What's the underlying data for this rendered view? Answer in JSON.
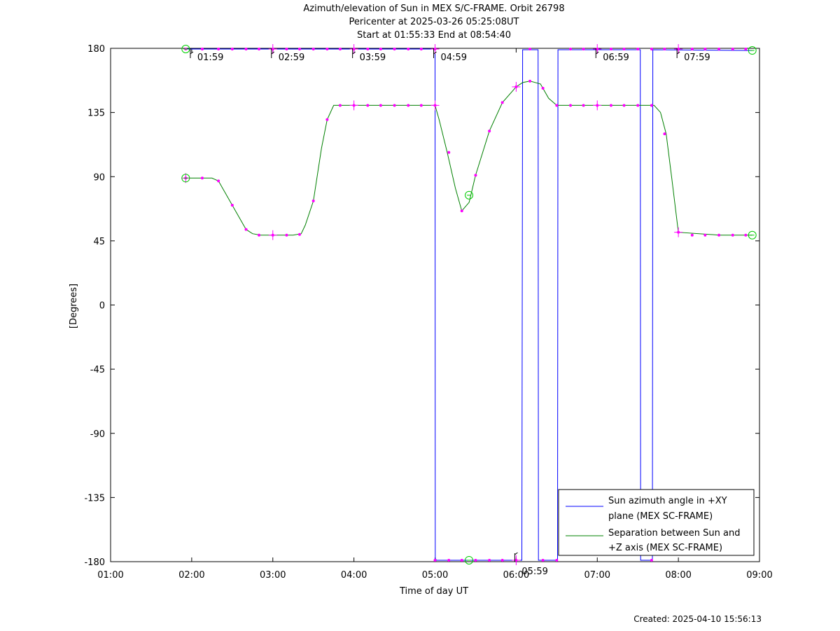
{
  "title": {
    "line1": "Azimuth/elevation of Sun in MEX S/C-FRAME.  Orbit 26798",
    "line2": "Pericenter at 2025-03-26 05:25:08UT",
    "line3": "Start at 01:55:33 End at 08:54:40"
  },
  "footer": {
    "created": "Created: 2025-04-10 15:56:13"
  },
  "chart_data": {
    "type": "line",
    "xlabel": "Time of day UT",
    "ylabel": "[Degrees]",
    "xlim": [
      1.0,
      9.0
    ],
    "ylim": [
      -180,
      180
    ],
    "x_ticks": [
      {
        "v": 1,
        "label": "01:00"
      },
      {
        "v": 2,
        "label": "02:00"
      },
      {
        "v": 3,
        "label": "03:00"
      },
      {
        "v": 4,
        "label": "04:00"
      },
      {
        "v": 5,
        "label": "05:00"
      },
      {
        "v": 6,
        "label": "06:00"
      },
      {
        "v": 7,
        "label": "07:00"
      },
      {
        "v": 8,
        "label": "08:00"
      },
      {
        "v": 9,
        "label": "09:00"
      }
    ],
    "y_ticks": [
      {
        "v": 180,
        "label": "180"
      },
      {
        "v": 135,
        "label": "135"
      },
      {
        "v": 90,
        "label": "90"
      },
      {
        "v": 45,
        "label": "45"
      },
      {
        "v": 0,
        "label": "0"
      },
      {
        "v": -45,
        "label": "-45"
      },
      {
        "v": -90,
        "label": "-90"
      },
      {
        "v": -135,
        "label": "-135"
      },
      {
        "v": -180,
        "label": "-180"
      }
    ],
    "grid": false,
    "legend_position": "bottom-right",
    "series": [
      {
        "name": "Sun azimuth angle in +XY plane (MEX SC-FRAME)",
        "color": "#0000ff",
        "x": [
          1.926,
          5.0,
          5.003,
          5.02,
          6.07,
          6.08,
          6.27,
          6.275,
          6.51,
          6.515,
          7.53,
          7.535,
          7.68,
          7.685,
          8.911
        ],
        "y": [
          179.5,
          179.5,
          -178,
          -179,
          -179,
          179,
          179,
          -179,
          -179,
          179,
          179,
          -179,
          -179,
          179,
          178.5
        ]
      },
      {
        "name": "Separation between Sun and +Z axis (MEX SC-FRAME)",
        "color": "#008000",
        "x": [
          1.926,
          2.0,
          2.25,
          2.33,
          2.5,
          2.67,
          2.75,
          2.85,
          3.0,
          3.25,
          3.35,
          3.4,
          3.5,
          3.6,
          3.67,
          3.75,
          4.0,
          4.5,
          5.0,
          5.05,
          5.15,
          5.25,
          5.33,
          5.42,
          5.5,
          5.67,
          5.83,
          6.0,
          6.08,
          6.17,
          6.3,
          6.4,
          6.5,
          7.0,
          7.5,
          7.7,
          7.78,
          7.85,
          7.92,
          8.0,
          8.5,
          8.911
        ],
        "y": [
          89,
          89,
          89,
          87,
          70,
          53,
          50,
          49,
          49,
          49,
          50,
          56,
          73,
          110,
          130,
          140,
          140,
          140,
          140,
          130,
          107,
          82,
          66,
          72,
          91,
          122,
          142,
          153,
          156,
          157,
          155,
          145,
          140,
          140,
          140,
          140,
          135,
          120,
          88,
          51,
          49,
          49
        ]
      }
    ],
    "markers": {
      "color": "#ff00ff",
      "points": [
        [
          1.926,
          89
        ],
        [
          2.13,
          89
        ],
        [
          2.33,
          87
        ],
        [
          2.5,
          70
        ],
        [
          2.67,
          53
        ],
        [
          2.83,
          49
        ],
        [
          3.0,
          49
        ],
        [
          3.17,
          49
        ],
        [
          3.33,
          49.5
        ],
        [
          3.5,
          73
        ],
        [
          3.67,
          130
        ],
        [
          3.83,
          140
        ],
        [
          4.0,
          140
        ],
        [
          4.17,
          140
        ],
        [
          4.33,
          140
        ],
        [
          4.5,
          140
        ],
        [
          4.67,
          140
        ],
        [
          4.83,
          140
        ],
        [
          5.0,
          140
        ],
        [
          5.17,
          107
        ],
        [
          5.33,
          66
        ],
        [
          5.5,
          91
        ],
        [
          5.67,
          122
        ],
        [
          5.83,
          142
        ],
        [
          6.0,
          153
        ],
        [
          6.17,
          157
        ],
        [
          6.33,
          152
        ],
        [
          6.5,
          140
        ],
        [
          6.67,
          140
        ],
        [
          6.83,
          140
        ],
        [
          7.0,
          140
        ],
        [
          7.17,
          140
        ],
        [
          7.33,
          140
        ],
        [
          7.5,
          140
        ],
        [
          7.67,
          140
        ],
        [
          7.83,
          120
        ],
        [
          8.0,
          51
        ],
        [
          8.17,
          49
        ],
        [
          8.33,
          49
        ],
        [
          8.5,
          49
        ],
        [
          8.67,
          49
        ],
        [
          8.83,
          49
        ],
        [
          1.926,
          179.5
        ],
        [
          2.13,
          179.5
        ],
        [
          2.33,
          179.5
        ],
        [
          2.5,
          179.5
        ],
        [
          2.67,
          179.5
        ],
        [
          2.83,
          179.5
        ],
        [
          3.0,
          179.5
        ],
        [
          3.17,
          179.5
        ],
        [
          3.33,
          179.5
        ],
        [
          3.5,
          179.5
        ],
        [
          3.67,
          179.5
        ],
        [
          3.83,
          179.5
        ],
        [
          4.0,
          179.5
        ],
        [
          4.17,
          179.5
        ],
        [
          4.33,
          179.5
        ],
        [
          4.5,
          179.5
        ],
        [
          4.67,
          179.5
        ],
        [
          4.83,
          179.5
        ],
        [
          5.0,
          179.5
        ],
        [
          6.17,
          179.5
        ],
        [
          6.67,
          179.5
        ],
        [
          6.83,
          179.5
        ],
        [
          7.0,
          179.5
        ],
        [
          7.17,
          179.5
        ],
        [
          7.33,
          179.5
        ],
        [
          7.5,
          179.5
        ],
        [
          7.67,
          179.5
        ],
        [
          7.83,
          179.5
        ],
        [
          8.0,
          179.5
        ],
        [
          8.17,
          179.5
        ],
        [
          8.33,
          179.5
        ],
        [
          8.5,
          179.5
        ],
        [
          8.67,
          179.5
        ],
        [
          8.83,
          179.5
        ],
        [
          5.0,
          -179
        ],
        [
          5.17,
          -179
        ],
        [
          5.33,
          -179
        ],
        [
          5.5,
          -179
        ],
        [
          5.67,
          -179
        ],
        [
          5.83,
          -179
        ],
        [
          6.0,
          -179
        ],
        [
          6.33,
          -179
        ],
        [
          6.5,
          -179
        ],
        [
          7.67,
          -179
        ]
      ]
    },
    "start_end_circles": [
      [
        1.926,
        89
      ],
      [
        1.926,
        179.5
      ],
      [
        8.911,
        49
      ],
      [
        8.911,
        178.5
      ],
      [
        5.419,
        77
      ],
      [
        5.419,
        -179
      ]
    ],
    "hour_markers": [
      {
        "x": 1.983,
        "y": 180,
        "label": "01:59"
      },
      {
        "x": 2.983,
        "y": 180,
        "label": "02:59"
      },
      {
        "x": 3.983,
        "y": 180,
        "label": "03:59"
      },
      {
        "x": 4.983,
        "y": 180,
        "label": "04:59"
      },
      {
        "x": 5.983,
        "y": -180,
        "label": "05:59"
      },
      {
        "x": 6.983,
        "y": 180,
        "label": "06:59"
      },
      {
        "x": 7.983,
        "y": 180,
        "label": "07:59"
      }
    ],
    "plus_markers": [
      [
        1.926,
        89
      ],
      [
        3.0,
        49
      ],
      [
        4.0,
        140
      ],
      [
        5.0,
        140
      ],
      [
        6.0,
        153
      ],
      [
        7.0,
        140
      ],
      [
        8.0,
        51
      ],
      [
        3.0,
        179.5
      ],
      [
        4.0,
        179.5
      ],
      [
        5.0,
        179.5
      ],
      [
        6.0,
        -179
      ],
      [
        7.0,
        179.5
      ],
      [
        8.0,
        179.5
      ]
    ]
  }
}
